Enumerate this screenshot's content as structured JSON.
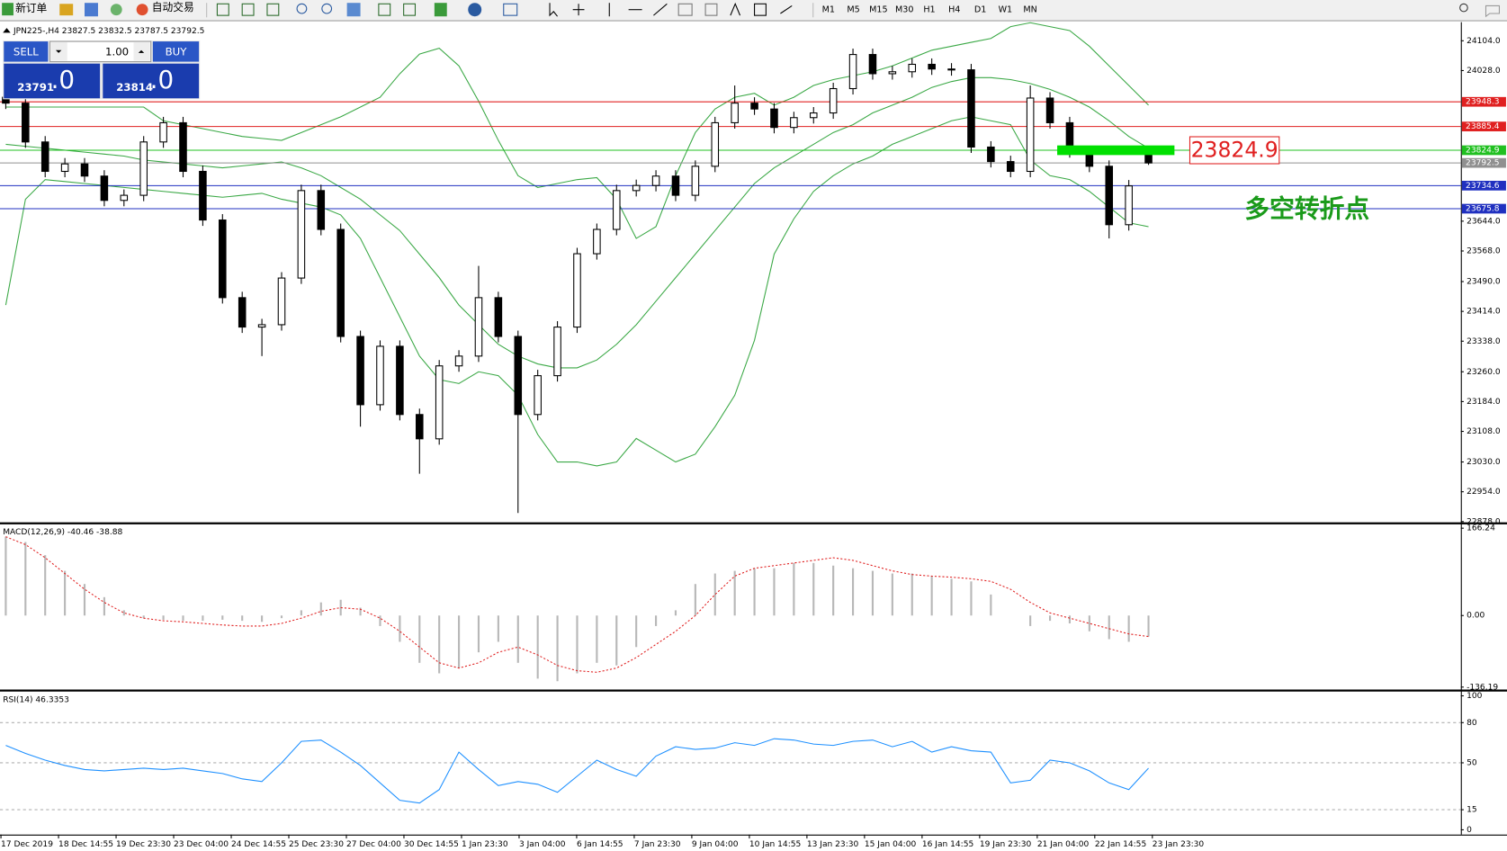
{
  "toolbar": {
    "new_order": "新订单",
    "auto_trade": "自动交易",
    "timeframes": [
      "M1",
      "M5",
      "M15",
      "M30",
      "H1",
      "H4",
      "D1",
      "W1",
      "MN"
    ]
  },
  "trade_panel": {
    "sell": "SELL",
    "lot": "1.00",
    "buy": "BUY",
    "bid_big": "23791",
    "bid_small": ".0",
    "ask_big": "23814",
    "ask_small": ".0"
  },
  "chart_data": [
    {
      "type": "candlestick",
      "title": "JPN225-,H4  23827.5 23832.5 23787.5 23792.5",
      "open": [
        23960,
        23945,
        23846,
        23771,
        23790,
        23759,
        23697,
        23710,
        23846,
        23895,
        23771,
        23647,
        23449,
        23374,
        23380,
        23499,
        23722,
        23623,
        23350,
        23176,
        23325,
        23151,
        23089,
        23275,
        23300,
        23449,
        23350,
        23151,
        23250,
        23374,
        23561,
        23623,
        23722,
        23735,
        23759,
        23710,
        23784,
        23895,
        23945,
        23930,
        23883,
        23908,
        23920,
        23982,
        24069,
        24020,
        24025,
        24044,
        24032,
        24030,
        23833,
        23796,
        23771,
        23958,
        23895,
        23821,
        23784,
        23635,
        23827.5
      ],
      "high": [
        23975,
        23960,
        23861,
        23805,
        23805,
        23774,
        23725,
        23861,
        23910,
        23910,
        23786,
        23662,
        23464,
        23395,
        23514,
        23737,
        23737,
        23638,
        23365,
        23340,
        23340,
        23166,
        23290,
        23315,
        23530,
        23464,
        23365,
        23265,
        23389,
        23576,
        23638,
        23737,
        23750,
        23774,
        23774,
        23799,
        23910,
        23990,
        23960,
        23945,
        23923,
        23935,
        23997,
        24084,
        24084,
        24040,
        24059,
        24059,
        24047,
        24045,
        23848,
        23811,
        23990,
        23973,
        23910,
        23836,
        23799,
        23749,
        23832.5
      ],
      "low": [
        23930,
        23831,
        23756,
        23756,
        23744,
        23682,
        23682,
        23695,
        23831,
        23756,
        23632,
        23434,
        23359,
        23300,
        23365,
        23484,
        23608,
        23335,
        23120,
        23161,
        23136,
        23000,
        23074,
        23260,
        23285,
        23335,
        22900,
        23136,
        23235,
        23359,
        23546,
        23608,
        23707,
        23720,
        23695,
        23695,
        23769,
        23880,
        23915,
        23868,
        23868,
        23893,
        23905,
        23967,
        24005,
        24005,
        24010,
        24017,
        24015,
        23818,
        23781,
        23756,
        23756,
        23880,
        23806,
        23769,
        23600,
        23620,
        23787.5
      ],
      "close": [
        23945,
        23846,
        23771,
        23790,
        23759,
        23697,
        23710,
        23846,
        23895,
        23771,
        23647,
        23449,
        23374,
        23380,
        23499,
        23722,
        23623,
        23350,
        23176,
        23325,
        23151,
        23089,
        23275,
        23300,
        23449,
        23350,
        23151,
        23250,
        23374,
        23561,
        23623,
        23722,
        23735,
        23759,
        23710,
        23784,
        23895,
        23945,
        23930,
        23883,
        23908,
        23920,
        23982,
        24069,
        24020,
        24025,
        24044,
        24032,
        24030,
        23833,
        23796,
        23771,
        23958,
        23895,
        23821,
        23784,
        23635,
        23734,
        23792.5
      ],
      "bands": {
        "color": "#3aa845",
        "upper": [
          23935,
          23935,
          23935,
          23935,
          23935,
          23935,
          23935,
          23935,
          23900,
          23890,
          23880,
          23870,
          23860,
          23855,
          23850,
          23870,
          23890,
          23910,
          23935,
          23960,
          24020,
          24070,
          24085,
          24040,
          23950,
          23850,
          23760,
          23730,
          23740,
          23750,
          23755,
          23700,
          23600,
          23630,
          23760,
          23870,
          23930,
          23960,
          23970,
          23940,
          23960,
          23990,
          24005,
          24015,
          24025,
          24040,
          24060,
          24080,
          24090,
          24100,
          24110,
          24140,
          24150,
          24140,
          24130,
          24090,
          24040,
          23990,
          23940
        ],
        "middle": [
          23840,
          23835,
          23830,
          23825,
          23820,
          23815,
          23810,
          23800,
          23795,
          23790,
          23785,
          23780,
          23785,
          23790,
          23795,
          23780,
          23760,
          23730,
          23700,
          23660,
          23620,
          23560,
          23500,
          23430,
          23380,
          23330,
          23300,
          23280,
          23270,
          23270,
          23290,
          23330,
          23380,
          23440,
          23500,
          23560,
          23620,
          23680,
          23740,
          23780,
          23810,
          23840,
          23870,
          23890,
          23920,
          23940,
          23960,
          23985,
          24000,
          24010,
          24010,
          24005,
          23995,
          23980,
          23960,
          23935,
          23900,
          23860,
          23830
        ],
        "lower": [
          23430,
          23700,
          23750,
          23745,
          23740,
          23735,
          23730,
          23725,
          23720,
          23715,
          23710,
          23705,
          23710,
          23715,
          23700,
          23690,
          23680,
          23660,
          23600,
          23500,
          23400,
          23300,
          23240,
          23230,
          23260,
          23250,
          23200,
          23100,
          23030,
          23030,
          23020,
          23030,
          23090,
          23060,
          23030,
          23050,
          23120,
          23200,
          23340,
          23560,
          23650,
          23720,
          23760,
          23790,
          23810,
          23840,
          23860,
          23880,
          23900,
          23910,
          23900,
          23890,
          23800,
          23760,
          23750,
          23720,
          23680,
          23640,
          23630
        ]
      },
      "levels": [
        {
          "value": 23948.3,
          "color": "#e02020"
        },
        {
          "value": 23885.4,
          "color": "#e02020"
        },
        {
          "value": 23824.9,
          "color": "#20c020"
        },
        {
          "value": 23792.5,
          "color": "#909090"
        },
        {
          "value": 23734.6,
          "color": "#2030c0"
        },
        {
          "value": 23675.8,
          "color": "#2030c0"
        }
      ],
      "annotation": {
        "value": 23824.9,
        "note": "多空转折点",
        "color": "#00e000"
      },
      "ylim": [
        22876,
        24149
      ],
      "yticks": [
        {
          "value": 24104,
          "label": "24104.0"
        },
        {
          "value": 24028,
          "label": "24028.0"
        },
        {
          "value": 23644,
          "label": "23644.0"
        },
        {
          "value": 23568,
          "label": "23568.0"
        },
        {
          "value": 23490,
          "label": "23490.0"
        },
        {
          "value": 23414,
          "label": "23414.0"
        },
        {
          "value": 23338,
          "label": "23338.0"
        },
        {
          "value": 23260,
          "label": "23260.0"
        },
        {
          "value": 23184,
          "label": "23184.0"
        },
        {
          "value": 23108,
          "label": "23108.0"
        },
        {
          "value": 23030,
          "label": "23030.0"
        },
        {
          "value": 22954,
          "label": "22954.0"
        },
        {
          "value": 22878,
          "label": "22878.0"
        }
      ],
      "x_labels": [
        "17 Dec 2019",
        "18 Dec 14:55",
        "19 Dec 23:30",
        "23 Dec 04:00",
        "24 Dec 14:55",
        "25 Dec 23:30",
        "27 Dec 04:00",
        "30 Dec 14:55",
        "1 Jan 23:30",
        "3 Jan 04:00",
        "6 Jan 14:55",
        "7 Jan 23:30",
        "9 Jan 04:00",
        "10 Jan 14:55",
        "13 Jan 23:30",
        "15 Jan 04:00",
        "16 Jan 14:55",
        "19 Jan 23:30",
        "21 Jan 04:00",
        "22 Jan 14:55",
        "23 Jan 23:30"
      ]
    },
    {
      "type": "macd",
      "title": "MACD(12,26,9) -40.46 -38.88",
      "histogram": [
        150,
        140,
        115,
        85,
        60,
        35,
        10,
        -5,
        -8,
        -10,
        -10,
        -8,
        -10,
        -12,
        -5,
        10,
        25,
        30,
        15,
        -20,
        -50,
        -90,
        -110,
        -100,
        -70,
        -50,
        -90,
        -120,
        -125,
        -110,
        -90,
        -95,
        -60,
        -20,
        10,
        60,
        80,
        85,
        90,
        90,
        100,
        100,
        95,
        90,
        85,
        80,
        80,
        75,
        70,
        65,
        40,
        0,
        -20,
        -10,
        -15,
        -30,
        -45,
        -50,
        -40
      ],
      "signal": [
        150,
        135,
        110,
        80,
        50,
        25,
        5,
        -5,
        -10,
        -12,
        -15,
        -18,
        -20,
        -20,
        -15,
        -5,
        8,
        15,
        12,
        -5,
        -30,
        -60,
        -90,
        -100,
        -90,
        -70,
        -60,
        -75,
        -95,
        -105,
        -108,
        -100,
        -80,
        -55,
        -30,
        0,
        40,
        75,
        90,
        95,
        100,
        105,
        110,
        105,
        95,
        85,
        78,
        75,
        73,
        70,
        65,
        50,
        25,
        5,
        -5,
        -15,
        -25,
        -35,
        -40
      ],
      "histogram_color": "#b8b8b8",
      "signal_color": "#e02020",
      "ylim": [
        -140,
        170
      ],
      "yticks": [
        166.24,
        {
          "value": 0,
          "label": "0.00"
        },
        -136.19
      ]
    },
    {
      "type": "line",
      "title": "RSI(14) 46.3353",
      "values": [
        63,
        57,
        52,
        48,
        45,
        44,
        45,
        46,
        45,
        46,
        44,
        42,
        38,
        36,
        50,
        66,
        67,
        58,
        48,
        35,
        22,
        20,
        30,
        58,
        45,
        33,
        36,
        34,
        28,
        40,
        52,
        45,
        40,
        55,
        62,
        60,
        61,
        65,
        63,
        68,
        67,
        64,
        63,
        66,
        67,
        62,
        66,
        58,
        62,
        59,
        58,
        35,
        37,
        52,
        50,
        44,
        35,
        30,
        46
      ],
      "color": "#1e90ff",
      "ylim": [
        0,
        100
      ],
      "yticks": [
        100,
        80,
        50,
        15,
        0
      ],
      "grid_ticks": [
        80,
        50,
        15
      ]
    }
  ]
}
